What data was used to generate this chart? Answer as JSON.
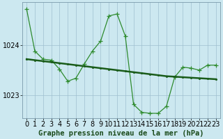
{
  "title": "Graphe pression niveau de la mer (hPa)",
  "bg_color": "#cce8f0",
  "line_color_dark": "#1a5c1a",
  "line_color_light": "#2e8b2e",
  "xlim": [
    -0.5,
    23.5
  ],
  "ylim": [
    1022.55,
    1024.85
  ],
  "yticks": [
    1023,
    1024
  ],
  "xticks": [
    0,
    1,
    2,
    3,
    4,
    5,
    6,
    7,
    8,
    9,
    10,
    11,
    12,
    13,
    14,
    15,
    16,
    17,
    18,
    19,
    20,
    21,
    22,
    23
  ],
  "series1_x": [
    0,
    1,
    2,
    3,
    4,
    5,
    6,
    7,
    8,
    9,
    10,
    11,
    12,
    13,
    14,
    15,
    16,
    17,
    18,
    19,
    20,
    21,
    22,
    23
  ],
  "series1_y": [
    1024.72,
    1023.88,
    1023.72,
    1023.7,
    1023.52,
    1023.28,
    1023.34,
    1023.62,
    1023.88,
    1024.08,
    1024.58,
    1024.62,
    1024.18,
    1022.82,
    1022.66,
    1022.64,
    1022.64,
    1022.78,
    1023.36,
    1023.56,
    1023.54,
    1023.5,
    1023.6,
    1023.6
  ],
  "series2_x": [
    0,
    1,
    2,
    3,
    4,
    5,
    6,
    7,
    8,
    9,
    10,
    11,
    12,
    13,
    14,
    15,
    16,
    17,
    18,
    19,
    20,
    21,
    22,
    23
  ],
  "series2_y": [
    1023.72,
    1023.7,
    1023.68,
    1023.66,
    1023.64,
    1023.62,
    1023.6,
    1023.58,
    1023.56,
    1023.54,
    1023.52,
    1023.5,
    1023.48,
    1023.46,
    1023.44,
    1023.42,
    1023.4,
    1023.38,
    1023.37,
    1023.36,
    1023.35,
    1023.34,
    1023.33,
    1023.32
  ],
  "tick_fontsize": 7,
  "xlabel_fontsize": 7.5
}
